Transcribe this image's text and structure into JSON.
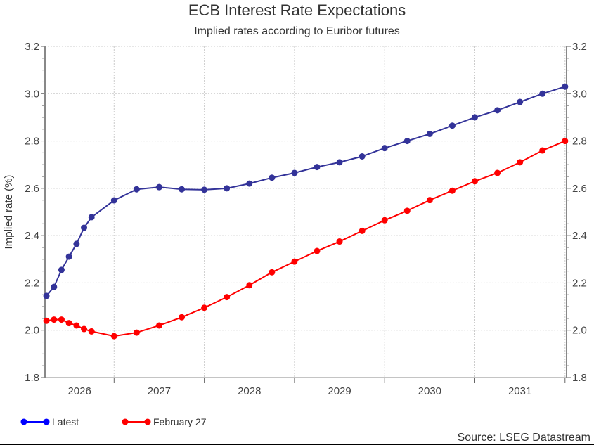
{
  "chart_data": {
    "type": "line",
    "title": "ECB Interest Rate Expectations",
    "subtitle": "Implied rates according to Euribor futures",
    "ylabel": "Implied rate (%)",
    "xlabel": "",
    "ylim": [
      1.8,
      3.2
    ],
    "yticks": [
      "1.8",
      "2.0",
      "2.2",
      "2.4",
      "2.6",
      "2.8",
      "3.0",
      "3.2"
    ],
    "xticks": [
      "2026",
      "2027",
      "2028",
      "2029",
      "2030",
      "2031"
    ],
    "grid": true,
    "legend": "bottom-left",
    "source": "Source: LSEG Datastream",
    "x": [
      "2026-03",
      "2026-04",
      "2026-05",
      "2026-06",
      "2026-07",
      "2026-08",
      "2026-09",
      "2026-12",
      "2027-03",
      "2027-06",
      "2027-09",
      "2027-12",
      "2028-03",
      "2028-06",
      "2028-09",
      "2028-12",
      "2029-03",
      "2029-06",
      "2029-09",
      "2029-12",
      "2030-03",
      "2030-06",
      "2030-09",
      "2030-12",
      "2031-03",
      "2031-06",
      "2031-09",
      "2031-12"
    ],
    "series": [
      {
        "name": "Latest",
        "color": "#333399",
        "legend_color": "#0000ff",
        "values": [
          2.145,
          2.183,
          2.255,
          2.311,
          2.365,
          2.433,
          2.478,
          2.549,
          2.596,
          2.605,
          2.596,
          2.594,
          2.6,
          2.62,
          2.645,
          2.665,
          2.69,
          2.71,
          2.735,
          2.77,
          2.8,
          2.83,
          2.865,
          2.9,
          2.93,
          2.965,
          3.0,
          3.03
        ]
      },
      {
        "name": "February 27",
        "color": "#ff0000",
        "legend_color": "#ff0000",
        "values": [
          2.04,
          2.045,
          2.045,
          2.03,
          2.02,
          2.005,
          1.995,
          1.975,
          1.99,
          2.02,
          2.055,
          2.095,
          2.14,
          2.19,
          2.245,
          2.29,
          2.335,
          2.375,
          2.42,
          2.465,
          2.505,
          2.55,
          2.59,
          2.63,
          2.665,
          2.71,
          2.76,
          2.8
        ]
      }
    ]
  }
}
